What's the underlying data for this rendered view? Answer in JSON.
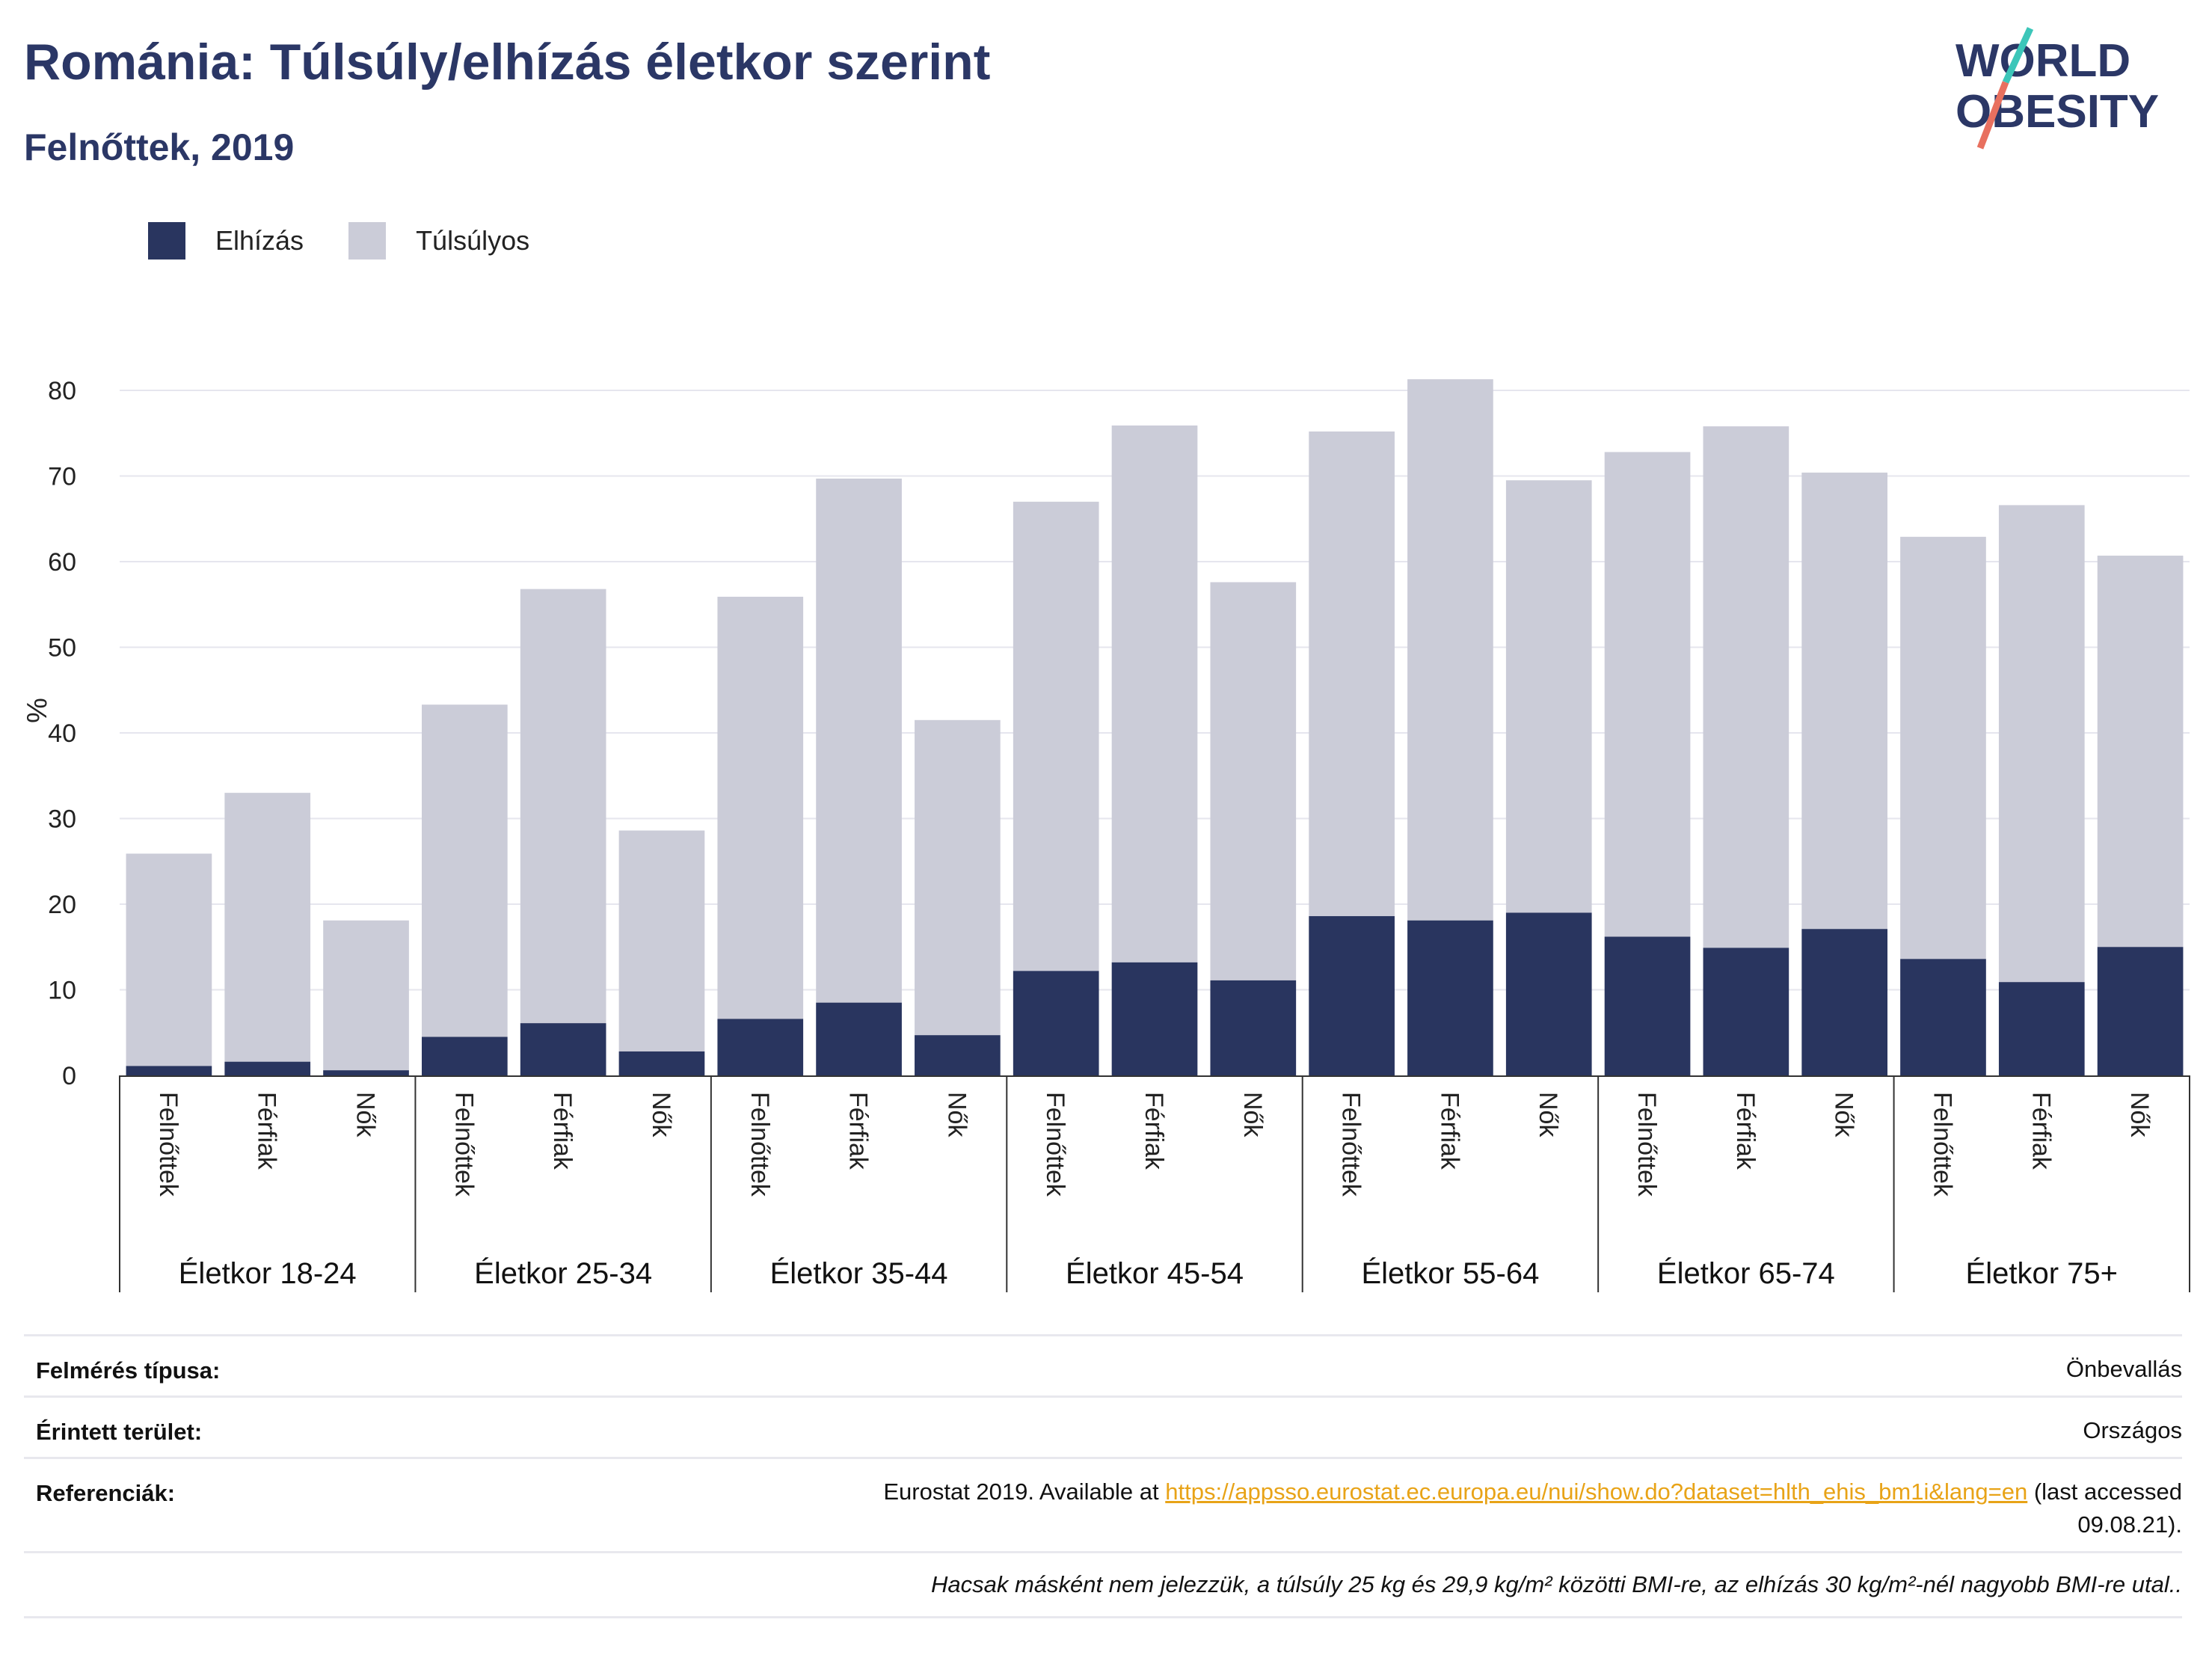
{
  "header": {
    "title": "Románia: Túlsúly/elhízás életkor szerint",
    "subtitle": "Felnőttek, 2019"
  },
  "logo": {
    "line1": "WORLD",
    "line2": "OBESITY"
  },
  "legend": {
    "obesity_label": "Elhízás",
    "overweight_label": "Túlsúlyos",
    "obesity_color": "#29355f",
    "overweight_color": "#cbccd8"
  },
  "chart_data": {
    "type": "bar",
    "stacked": true,
    "ylabel": "%",
    "ylim": [
      0,
      80
    ],
    "yticks": [
      0,
      10,
      20,
      30,
      40,
      50,
      60,
      70,
      80
    ],
    "grid": true,
    "legend_position": "top-left",
    "groups": [
      "Életkor 18-24",
      "Életkor 25-34",
      "Életkor 35-44",
      "Életkor 45-54",
      "Életkor 55-64",
      "Életkor 65-74",
      "Életkor 75+"
    ],
    "subcategories": [
      "Felnőttek",
      "Férfiak",
      "Nők"
    ],
    "series": [
      {
        "name": "Elhízás",
        "color": "#29355f",
        "values": [
          1.1,
          1.6,
          0.6,
          4.5,
          6.1,
          2.8,
          6.6,
          8.5,
          4.7,
          12.2,
          13.2,
          11.1,
          18.6,
          18.1,
          19.0,
          16.2,
          14.9,
          17.1,
          13.6,
          10.9,
          15.0
        ]
      },
      {
        "name": "Túlsúlyos",
        "color": "#cbccd8",
        "values": [
          24.8,
          31.4,
          17.5,
          38.8,
          50.7,
          25.8,
          49.3,
          61.2,
          36.8,
          54.8,
          62.7,
          46.5,
          56.6,
          63.2,
          50.5,
          56.6,
          60.9,
          53.3,
          49.3,
          55.7,
          45.7
        ]
      }
    ],
    "totals": [
      25.9,
      33.0,
      18.1,
      43.3,
      56.8,
      28.6,
      55.9,
      69.7,
      41.5,
      67.0,
      75.9,
      57.6,
      75.2,
      81.3,
      69.5,
      72.8,
      75.8,
      70.4,
      62.9,
      66.6,
      60.7
    ]
  },
  "info": {
    "survey_key": "Felmérés típusa:",
    "survey_val": "Önbevallás",
    "area_key": "Érintett terület:",
    "area_val": "Országos",
    "ref_key": "Referenciák:",
    "ref_pre": "Eurostat 2019. Available at ",
    "ref_link": "https://appsso.eurostat.ec.europa.eu/nui/show.do?dataset=hlth_ehis_bm1i&lang=en",
    "ref_post": " (last accessed",
    "ref_date": "09.08.21).",
    "footnote": "Hacsak másként nem jelezzük, a túlsúly 25 kg és 29,9 kg/m² közötti BMI-re, az elhízás 30 kg/m²-nél nagyobb BMI-re utal.."
  }
}
